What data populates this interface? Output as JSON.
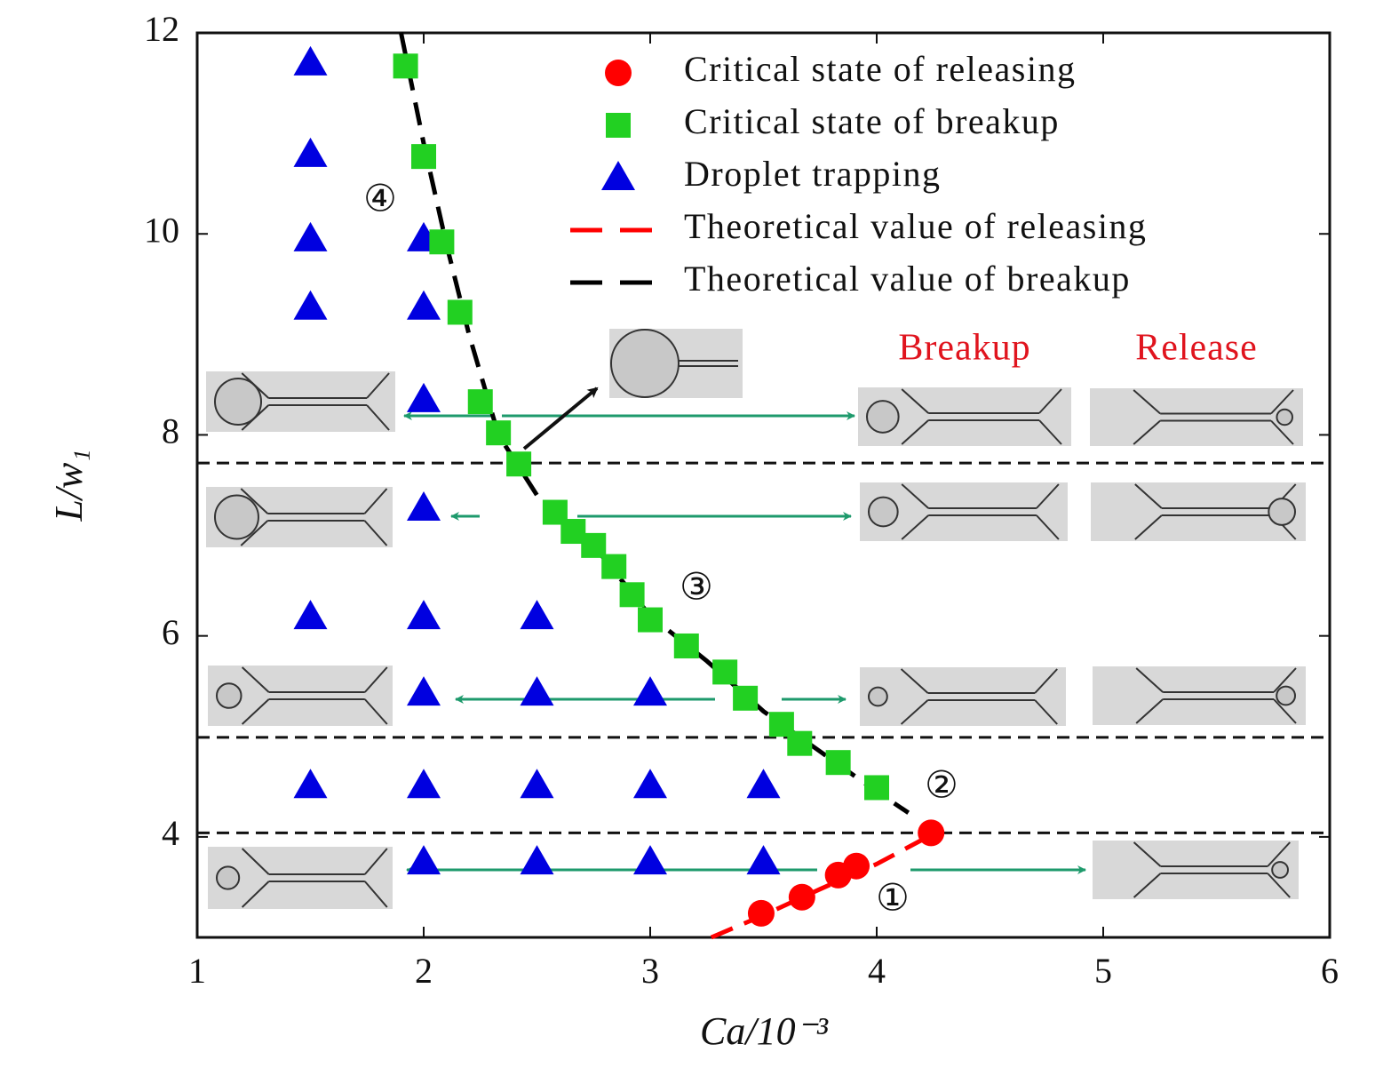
{
  "chart_data": {
    "type": "scatter",
    "xlabel": "Ca/10⁻³",
    "ylabel": "L/w₁",
    "xlim": [
      1,
      6
    ],
    "ylim": [
      3,
      12
    ],
    "xticks": [
      1,
      2,
      3,
      4,
      5,
      6
    ],
    "yticks": [
      4,
      6,
      8,
      10,
      12
    ],
    "legend": "upper right",
    "hlines": [
      7.72,
      4.99,
      4.04
    ],
    "series": [
      {
        "name": "Critical state of releasing",
        "color": "#ff0000",
        "marker": "circle",
        "x": [
          3.49,
          3.67,
          3.83,
          3.91,
          4.24
        ],
        "values": [
          3.24,
          3.4,
          3.62,
          3.71,
          4.04
        ]
      },
      {
        "name": "Critical state of breakup",
        "color": "#22d022",
        "marker": "square",
        "x": [
          1.92,
          2.0,
          2.08,
          2.16,
          2.25,
          2.33,
          2.42,
          2.58,
          2.66,
          2.75,
          2.84,
          2.92,
          3.0,
          3.16,
          3.33,
          3.42,
          3.58,
          3.66,
          3.83,
          4.0
        ],
        "values": [
          11.67,
          10.77,
          9.92,
          9.22,
          8.33,
          8.02,
          7.71,
          7.23,
          7.04,
          6.9,
          6.69,
          6.41,
          6.16,
          5.9,
          5.64,
          5.38,
          5.12,
          4.93,
          4.74,
          4.49
        ]
      },
      {
        "name": "Droplet trapping",
        "color": "#0000e0",
        "marker": "triangle",
        "x": [
          1.5,
          1.5,
          1.5,
          1.5,
          1.5,
          1.5,
          2,
          2,
          2,
          2,
          2,
          2,
          2,
          2,
          2.5,
          2.5,
          2.5,
          2.5,
          3,
          3,
          3,
          3.5,
          3.5
        ],
        "values": [
          11.7,
          10.79,
          9.95,
          9.27,
          6.19,
          4.51,
          9.95,
          9.27,
          8.35,
          7.27,
          6.19,
          5.43,
          4.51,
          3.75,
          6.19,
          5.43,
          4.51,
          3.75,
          5.43,
          4.51,
          3.75,
          4.51,
          3.75
        ]
      },
      {
        "name": "Theoretical value of releasing",
        "color": "#ff0000",
        "marker": "dashed-line",
        "x": [
          3.27,
          3.5,
          3.75,
          4.0,
          4.25
        ],
        "values": [
          3.0,
          3.22,
          3.48,
          3.73,
          4.03
        ]
      },
      {
        "name": "Theoretical value of breakup",
        "color": "#000000",
        "marker": "dashed-line",
        "x": [
          1.9,
          2.0,
          2.1,
          2.2,
          2.33,
          2.5,
          2.75,
          3.0,
          3.25,
          3.5,
          3.75,
          4.0,
          4.14
        ],
        "values": [
          12.0,
          10.9,
          9.9,
          9.0,
          8.0,
          7.4,
          6.9,
          6.2,
          5.75,
          5.25,
          4.85,
          4.45,
          4.24
        ]
      }
    ],
    "annotations": [
      "④",
      "③",
      "②",
      "①",
      "Breakup",
      "Release"
    ]
  }
}
